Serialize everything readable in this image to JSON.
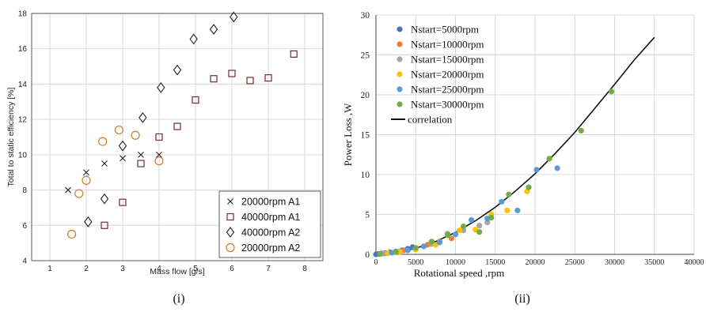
{
  "colors": {
    "grid_left": "#d9d9d9",
    "grid_right": "#d9d9d9",
    "axis": "#333333",
    "maroon": "#7a2b2b",
    "orange_circle": "#d07a28",
    "correlation": "#111111"
  },
  "chart_data": [
    {
      "type": "scatter",
      "panel_label": "(i)",
      "xlabel": "Mass flow [g/s]",
      "ylabel": "Total to static efficiency [%]",
      "xlim": [
        0.5,
        8.5
      ],
      "ylim": [
        4,
        18
      ],
      "x_ticks": [
        "1",
        "2",
        "3",
        "4",
        "5",
        "6",
        "7",
        "8"
      ],
      "y_ticks": [
        "4",
        "6",
        "8",
        "10",
        "12",
        "14",
        "16",
        "18"
      ],
      "grid": true,
      "legend_position": "bottom-right",
      "series": [
        {
          "name": "20000rpm A1",
          "marker": "x",
          "color": "#222222",
          "points": [
            [
              1.5,
              8.0
            ],
            [
              2.0,
              9.0
            ],
            [
              2.5,
              9.5
            ],
            [
              3.0,
              9.8
            ],
            [
              3.5,
              10.0
            ],
            [
              4.0,
              10.0
            ]
          ]
        },
        {
          "name": "40000rpm A1",
          "marker": "square",
          "color": "#7a2b2b",
          "points": [
            [
              2.5,
              6.0
            ],
            [
              3.0,
              7.3
            ],
            [
              3.5,
              9.5
            ],
            [
              4.0,
              11.0
            ],
            [
              4.5,
              11.6
            ],
            [
              5.0,
              13.1
            ],
            [
              5.5,
              14.3
            ],
            [
              6.0,
              14.6
            ],
            [
              6.5,
              14.2
            ],
            [
              7.0,
              14.35
            ],
            [
              7.7,
              15.7
            ]
          ]
        },
        {
          "name": "40000rpm A2",
          "marker": "diamond",
          "color": "#222222",
          "points": [
            [
              2.05,
              6.2
            ],
            [
              2.5,
              7.5
            ],
            [
              3.0,
              10.5
            ],
            [
              3.55,
              12.1
            ],
            [
              4.05,
              13.8
            ],
            [
              4.5,
              14.8
            ],
            [
              4.95,
              16.55
            ],
            [
              5.5,
              17.1
            ],
            [
              6.05,
              17.8
            ]
          ]
        },
        {
          "name": "20000rpm A2",
          "marker": "circle",
          "color": "#d07a28",
          "points": [
            [
              1.6,
              5.5
            ],
            [
              1.8,
              7.8
            ],
            [
              2.0,
              8.55
            ],
            [
              2.45,
              10.75
            ],
            [
              2.9,
              11.4
            ],
            [
              3.35,
              11.1
            ],
            [
              4.0,
              9.65
            ]
          ]
        }
      ]
    },
    {
      "type": "scatter",
      "panel_label": "(ii)",
      "xlabel": "Rotational speed ,rpm",
      "ylabel": "Power Loss ,W",
      "xlim": [
        0,
        40000
      ],
      "ylim": [
        0,
        30
      ],
      "x_ticks": [
        "0",
        "5000",
        "10000",
        "15000",
        "20000",
        "25000",
        "30000",
        "35000",
        "40000"
      ],
      "y_ticks": [
        "0",
        "5",
        "10",
        "15",
        "20",
        "25",
        "30"
      ],
      "grid": true,
      "legend_position": "top-left",
      "series": [
        {
          "name": "Nstart=5000rpm",
          "color": "#4472c4",
          "points": [
            [
              0,
              0
            ],
            [
              300,
              0.05
            ],
            [
              700,
              0.1
            ],
            [
              1200,
              0.15
            ],
            [
              1800,
              0.25
            ],
            [
              2500,
              0.35
            ],
            [
              3300,
              0.5
            ],
            [
              4000,
              0.7
            ],
            [
              4600,
              0.9
            ]
          ]
        },
        {
          "name": "Nstart=10000rpm",
          "color": "#ed7d31",
          "points": [
            [
              500,
              0.05
            ],
            [
              1500,
              0.15
            ],
            [
              2500,
              0.3
            ],
            [
              3500,
              0.5
            ],
            [
              5000,
              0.8
            ],
            [
              6500,
              1.2
            ],
            [
              8000,
              1.6
            ],
            [
              9500,
              2.0
            ]
          ]
        },
        {
          "name": "Nstart=15000rpm",
          "color": "#a5a5a5",
          "points": [
            [
              1000,
              0.1
            ],
            [
              3000,
              0.4
            ],
            [
              5000,
              0.7
            ],
            [
              7000,
              1.3
            ],
            [
              9000,
              2.6
            ],
            [
              11000,
              3.0
            ],
            [
              13000,
              3.6
            ],
            [
              14000,
              4.0
            ]
          ]
        },
        {
          "name": "Nstart=20000rpm",
          "color": "#ffc000",
          "points": [
            [
              1500,
              0.15
            ],
            [
              3000,
              0.3
            ],
            [
              5000,
              0.6
            ],
            [
              7500,
              1.2
            ],
            [
              10500,
              3.0
            ],
            [
              12500,
              3.1
            ],
            [
              14500,
              5.0
            ],
            [
              16500,
              5.5
            ],
            [
              19000,
              7.9
            ]
          ]
        },
        {
          "name": "Nstart=25000rpm",
          "color": "#5b9bd5",
          "points": [
            [
              2000,
              0.2
            ],
            [
              4000,
              0.5
            ],
            [
              6000,
              1.0
            ],
            [
              8000,
              1.5
            ],
            [
              10000,
              2.5
            ],
            [
              12000,
              4.3
            ],
            [
              14000,
              4.5
            ],
            [
              15800,
              6.6
            ],
            [
              17800,
              5.5
            ],
            [
              20200,
              10.6
            ],
            [
              22800,
              10.8
            ]
          ]
        },
        {
          "name": "Nstart=30000rpm",
          "color": "#70ad47",
          "points": [
            [
              500,
              0.05
            ],
            [
              2500,
              0.3
            ],
            [
              5000,
              0.8
            ],
            [
              7000,
              1.6
            ],
            [
              9000,
              2.4
            ],
            [
              11000,
              3.5
            ],
            [
              13000,
              2.8
            ],
            [
              14500,
              4.6
            ],
            [
              16700,
              7.5
            ],
            [
              19200,
              8.4
            ],
            [
              21800,
              12.0
            ],
            [
              25800,
              15.5
            ],
            [
              29600,
              20.4
            ]
          ]
        },
        {
          "name": "correlation",
          "kind": "line",
          "color": "#111111",
          "points": [
            [
              0,
              0
            ],
            [
              2500,
              0.2
            ],
            [
              5000,
              0.75
            ],
            [
              7500,
              1.6
            ],
            [
              10000,
              2.75
            ],
            [
              12500,
              4.2
            ],
            [
              15000,
              5.9
            ],
            [
              17500,
              7.9
            ],
            [
              20000,
              10.1
            ],
            [
              22500,
              12.6
            ],
            [
              25000,
              15.3
            ],
            [
              27500,
              18.3
            ],
            [
              30000,
              21.3
            ],
            [
              32500,
              24.4
            ],
            [
              35000,
              27.2
            ]
          ]
        }
      ]
    }
  ]
}
